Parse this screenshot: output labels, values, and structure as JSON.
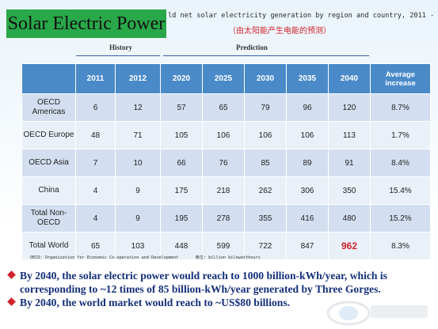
{
  "slide_title": "Solar Electric Power",
  "header_en": "ld net solar electricity generation by region and country, 2011 -",
  "header_cn": "（由太阳能产生电能的预测）",
  "groups": {
    "history": "History",
    "prediction": "Prediction"
  },
  "table": {
    "columns": [
      "",
      "2011",
      "2012",
      "2020",
      "2025",
      "2030",
      "2035",
      "2040",
      "Average increase"
    ],
    "rows": [
      {
        "label": "OECD Americas",
        "values": [
          "6",
          "12",
          "57",
          "65",
          "79",
          "96",
          "120",
          "8.7%"
        ]
      },
      {
        "label": "OECD Europe",
        "values": [
          "48",
          "71",
          "105",
          "106",
          "106",
          "106",
          "113",
          "1.7%"
        ]
      },
      {
        "label": "OECD Asia",
        "values": [
          "7",
          "10",
          "66",
          "76",
          "85",
          "89",
          "91",
          "8.4%"
        ]
      },
      {
        "label": "China",
        "values": [
          "4",
          "9",
          "175",
          "218",
          "262",
          "306",
          "350",
          "15.4%"
        ]
      },
      {
        "label": "Total Non-OECD",
        "values": [
          "4",
          "9",
          "195",
          "278",
          "355",
          "416",
          "480",
          "15.2%"
        ]
      },
      {
        "label": "Total World",
        "values": [
          "65",
          "103",
          "448",
          "599",
          "722",
          "847",
          "962",
          "8.3%"
        ]
      }
    ],
    "highlight_color": "#d0232a"
  },
  "footnote": {
    "source": "OECD: Organization for Economic Co-operation and Development",
    "unit": "单位: billion kilowatthours"
  },
  "bullets": [
    "By 2040, the solar electric power would reach to 1000 billion-kWh/year, which is corresponding to ~12 times of 85 billion-kWh/year generated by Three Gorges.",
    "By 2040, the world market would reach to ~US$80 billions."
  ],
  "colors": {
    "title_bg": "#29a84a",
    "table_head": "#4a8ac9",
    "row_odd": "#d3dff0",
    "row_even": "#eaf0f8",
    "bullet_text": "#142f7a",
    "accent_red": "#d0232a"
  }
}
